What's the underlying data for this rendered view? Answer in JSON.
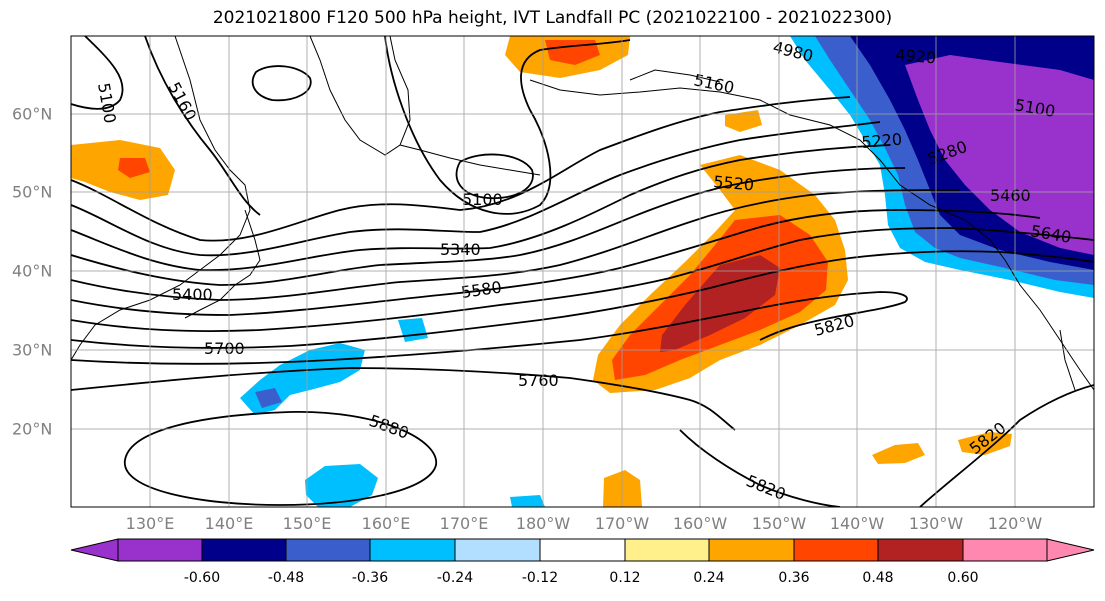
{
  "title": "2021021800 F120 500 hPa height, IVT Landfall PC (2021022100 - 2021022300)",
  "lon_labels": [
    "130°E",
    "140°E",
    "150°E",
    "160°E",
    "170°E",
    "180°W",
    "170°W",
    "160°W",
    "150°W",
    "140°W",
    "130°W",
    "120°W"
  ],
  "lat_labels": [
    "60°N",
    "50°N",
    "40°N",
    "30°N",
    "20°N"
  ],
  "colorbar": {
    "ticks": [
      "-0.60",
      "-0.48",
      "-0.36",
      "-0.24",
      "-0.12",
      "0.12",
      "0.24",
      "0.36",
      "0.48",
      "0.60"
    ],
    "colors": [
      "#9932cc",
      "#00008b",
      "#3a5fcd",
      "#00bfff",
      "#b2dfff",
      "#ffffff",
      "#fff08c",
      "#ffa500",
      "#ff4500",
      "#b22222",
      "#ff88b0"
    ]
  },
  "contour_labels": [
    "5100",
    "5160",
    "4980",
    "4920",
    "5100",
    "5160",
    "5100",
    "5220",
    "5280",
    "5460",
    "5640",
    "5520",
    "5340",
    "5400",
    "5580",
    "5700",
    "5760",
    "5820",
    "5880",
    "5820",
    "5820"
  ]
}
